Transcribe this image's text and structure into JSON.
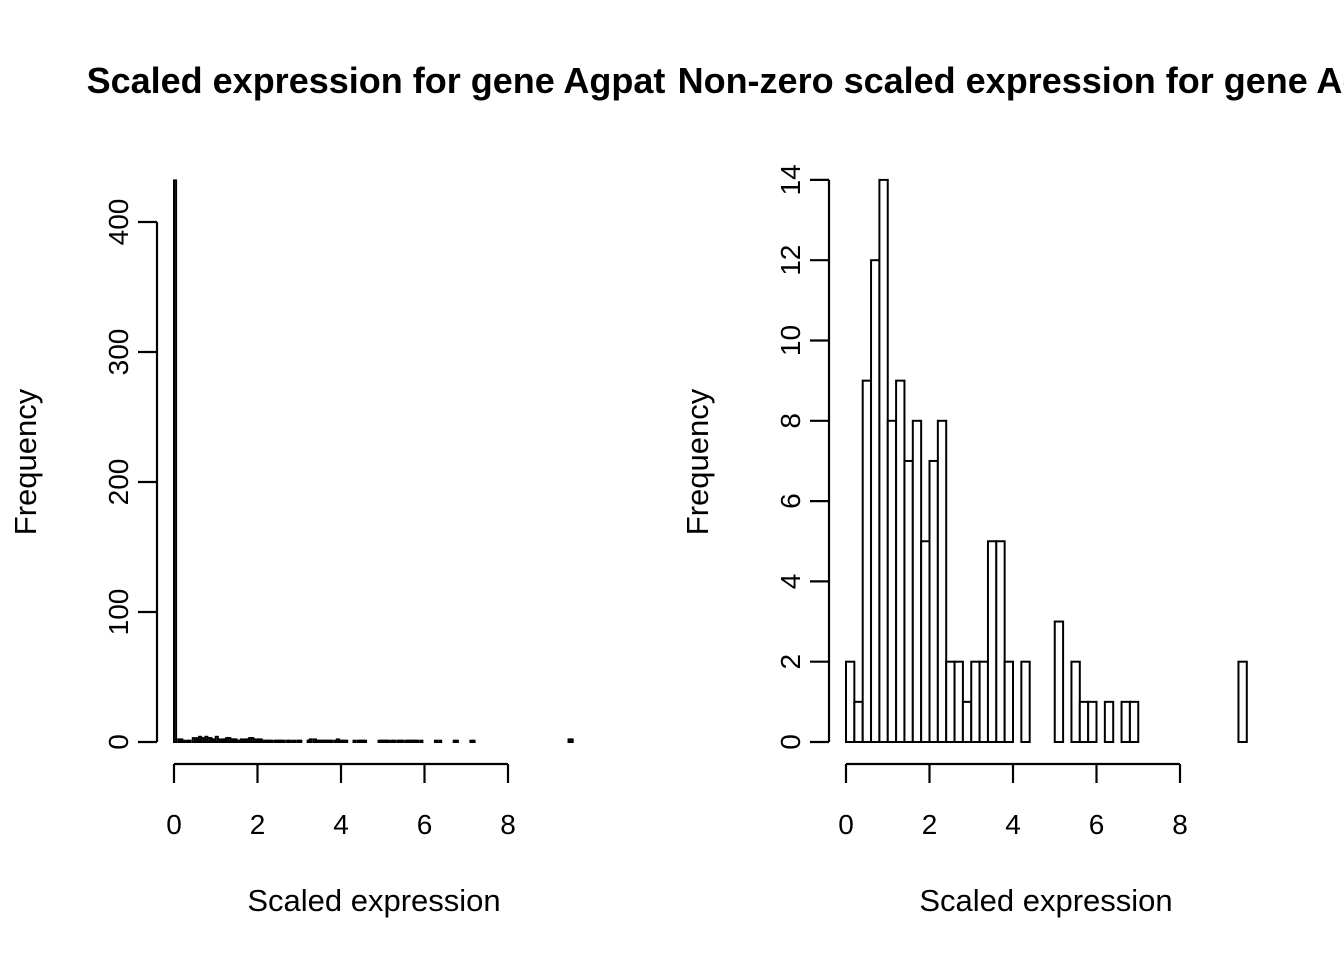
{
  "chart_data": [
    {
      "type": "bar",
      "title": "Scaled expression for gene Agpat",
      "xlabel": "Scaled expression",
      "ylabel": "Frequency",
      "x_ticks": [
        0,
        2,
        4,
        6,
        8
      ],
      "y_ticks": [
        0,
        100,
        200,
        300,
        400
      ],
      "xlim": [
        0,
        9.6
      ],
      "ylim": [
        0,
        430
      ],
      "bin_width": 0.05,
      "bins_from": 0,
      "counts": [
        432,
        0,
        2,
        2,
        1,
        0,
        1,
        1,
        0,
        3,
        2,
        3,
        4,
        3,
        2,
        4,
        3,
        3,
        2,
        2,
        4,
        2,
        1,
        2,
        2,
        3,
        3,
        2,
        2,
        2,
        1,
        1,
        2,
        1,
        2,
        2,
        3,
        3,
        2,
        1,
        2,
        2,
        1,
        1,
        1,
        1,
        1,
        0,
        1,
        1,
        1,
        1,
        1,
        0,
        1,
        1,
        0,
        1,
        0,
        1,
        1,
        0,
        0,
        0,
        1,
        2,
        0,
        2,
        1,
        1,
        1,
        1,
        1,
        1,
        1,
        1,
        0,
        1,
        2,
        1,
        1,
        1,
        1,
        0,
        0,
        0,
        1,
        0,
        1,
        1,
        1,
        1,
        0,
        0,
        0,
        0,
        0,
        0,
        1,
        1,
        1,
        1,
        1,
        0,
        1,
        1,
        0,
        1,
        1,
        1,
        0,
        1,
        1,
        1,
        1,
        1,
        1,
        0,
        1,
        0,
        0,
        0,
        0,
        0,
        0,
        1,
        0,
        1,
        0,
        0,
        0,
        0,
        0,
        0,
        1,
        1,
        0,
        0,
        0,
        0,
        0,
        0,
        1,
        1,
        0,
        0,
        0,
        0,
        0,
        0,
        0,
        0,
        0,
        0,
        0,
        0,
        0,
        0,
        0,
        0,
        0,
        0,
        0,
        0,
        0,
        0,
        0,
        0,
        0,
        0,
        0,
        0,
        0,
        0,
        0,
        0,
        0,
        0,
        0,
        0,
        0,
        0,
        0,
        0,
        0,
        0,
        0,
        0,
        0,
        2,
        2,
        0
      ]
    },
    {
      "type": "bar",
      "title": "Non-zero scaled expression for gene Agpat",
      "xlabel": "Scaled expression",
      "ylabel": "Frequency",
      "x_ticks": [
        0,
        2,
        4,
        6,
        8
      ],
      "y_ticks": [
        0,
        2,
        4,
        6,
        8,
        10,
        12,
        14
      ],
      "xlim": [
        0,
        9.6
      ],
      "ylim": [
        0,
        14
      ],
      "bin_width": 0.2,
      "bins_from": 0,
      "counts": [
        2,
        1,
        9,
        12,
        14,
        8,
        9,
        7,
        8,
        5,
        7,
        8,
        2,
        2,
        1,
        2,
        2,
        5,
        5,
        2,
        0,
        2,
        0,
        0,
        0,
        3,
        0,
        2,
        1,
        1,
        0,
        1,
        0,
        1,
        1,
        0,
        0,
        0,
        0,
        0,
        0,
        0,
        0,
        0,
        0,
        0,
        0,
        2
      ]
    }
  ]
}
